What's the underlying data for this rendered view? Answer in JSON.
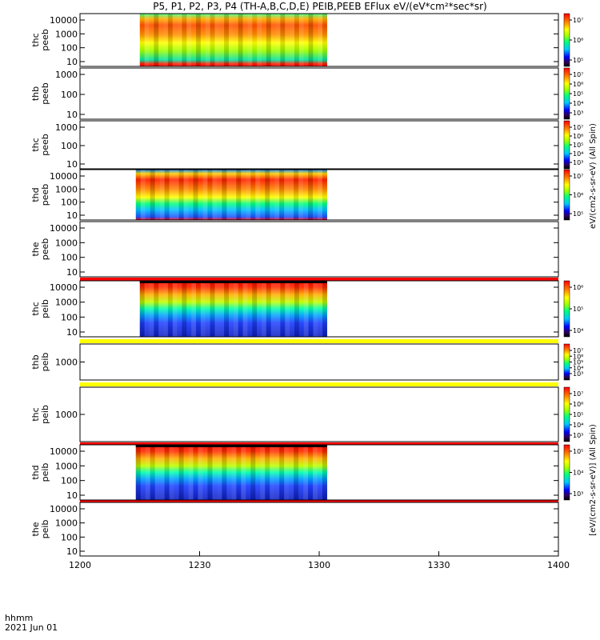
{
  "title": "P5, P1, P2, P3, P4 (TH-A,B,C,D,E) PEIB,PEEB EFlux eV/(eV*cm²*sec*sr)",
  "colorbar_label_ee": "eV/(cm2-s-sr-eV) (All Spin)",
  "colorbar_label_ie": "[eV/(cm2-s-sr-eV)] (All Spin)",
  "time_label": "hhmm",
  "date_label": "2021 Jun 01",
  "colors": {
    "lo": "#000080",
    "hi": "#ff0000",
    "yellow_band": "#ffff00",
    "red_band": "#ff0000"
  },
  "chart_data": {
    "type": "heatmap",
    "x_axis": {
      "label": "hhmm",
      "range": [
        "1200",
        "1400"
      ],
      "ticks": [
        "1200",
        "1230",
        "1300",
        "1330",
        "1400"
      ]
    },
    "panels": [
      {
        "probe": "thc",
        "instrument": "peeb",
        "y_ticks": [
          "10",
          "100",
          "1000",
          "10000"
        ],
        "data_start": "1215",
        "data_end": "1302",
        "colorbar_ticks": [
          "10⁵",
          "10⁶",
          "10⁷"
        ]
      },
      {
        "probe": "thb",
        "instrument": "peeb",
        "y_ticks": [
          "10",
          "100",
          "1000"
        ],
        "data_start": null,
        "data_end": null,
        "colorbar_ticks": [
          "10³",
          "10⁴",
          "10⁵",
          "10⁶",
          "10⁷"
        ]
      },
      {
        "probe": "thc",
        "instrument": "peeb",
        "y_ticks": [
          "10",
          "100",
          "1000"
        ],
        "data_start": null,
        "data_end": null,
        "colorbar_ticks": [
          "10³",
          "10⁴",
          "10⁵",
          "10⁶",
          "10⁷"
        ]
      },
      {
        "probe": "thd",
        "instrument": "peeb",
        "y_ticks": [
          "10",
          "100",
          "1000",
          "10000"
        ],
        "data_start": "1214",
        "data_end": "1302",
        "colorbar_ticks": [
          "10⁵",
          "10⁶",
          "10⁷"
        ]
      },
      {
        "probe": "the",
        "instrument": "peeb",
        "y_ticks": [
          "10",
          "100",
          "1000",
          "10000"
        ],
        "data_start": null,
        "data_end": null,
        "colorbar_ticks": []
      },
      {
        "probe": "thc",
        "instrument": "peib",
        "y_ticks": [
          "10",
          "100",
          "1000",
          "10000"
        ],
        "data_start": "1215",
        "data_end": "1302",
        "colorbar_ticks": [
          "10⁴",
          "10⁵",
          "10⁶"
        ]
      },
      {
        "probe": "thb",
        "instrument": "peib",
        "y_ticks": [
          "1000"
        ],
        "data_start": null,
        "data_end": null,
        "colorbar_ticks": [
          "10³",
          "10⁴",
          "10⁵",
          "10⁶",
          "10⁷"
        ]
      },
      {
        "probe": "thc",
        "instrument": "peib",
        "y_ticks": [
          "1000"
        ],
        "data_start": null,
        "data_end": null,
        "colorbar_ticks": [
          "10³",
          "10⁴",
          "10⁵",
          "10⁶",
          "10⁷"
        ]
      },
      {
        "probe": "thd",
        "instrument": "peib",
        "y_ticks": [
          "10",
          "100",
          "1000",
          "10000"
        ],
        "data_start": "1214",
        "data_end": "1302",
        "colorbar_ticks": [
          "10³",
          "10⁴",
          "10⁵"
        ]
      },
      {
        "probe": "the",
        "instrument": "peib",
        "y_ticks": [
          "10",
          "100",
          "1000",
          "10000"
        ],
        "data_start": null,
        "data_end": null,
        "colorbar_ticks": []
      }
    ]
  }
}
